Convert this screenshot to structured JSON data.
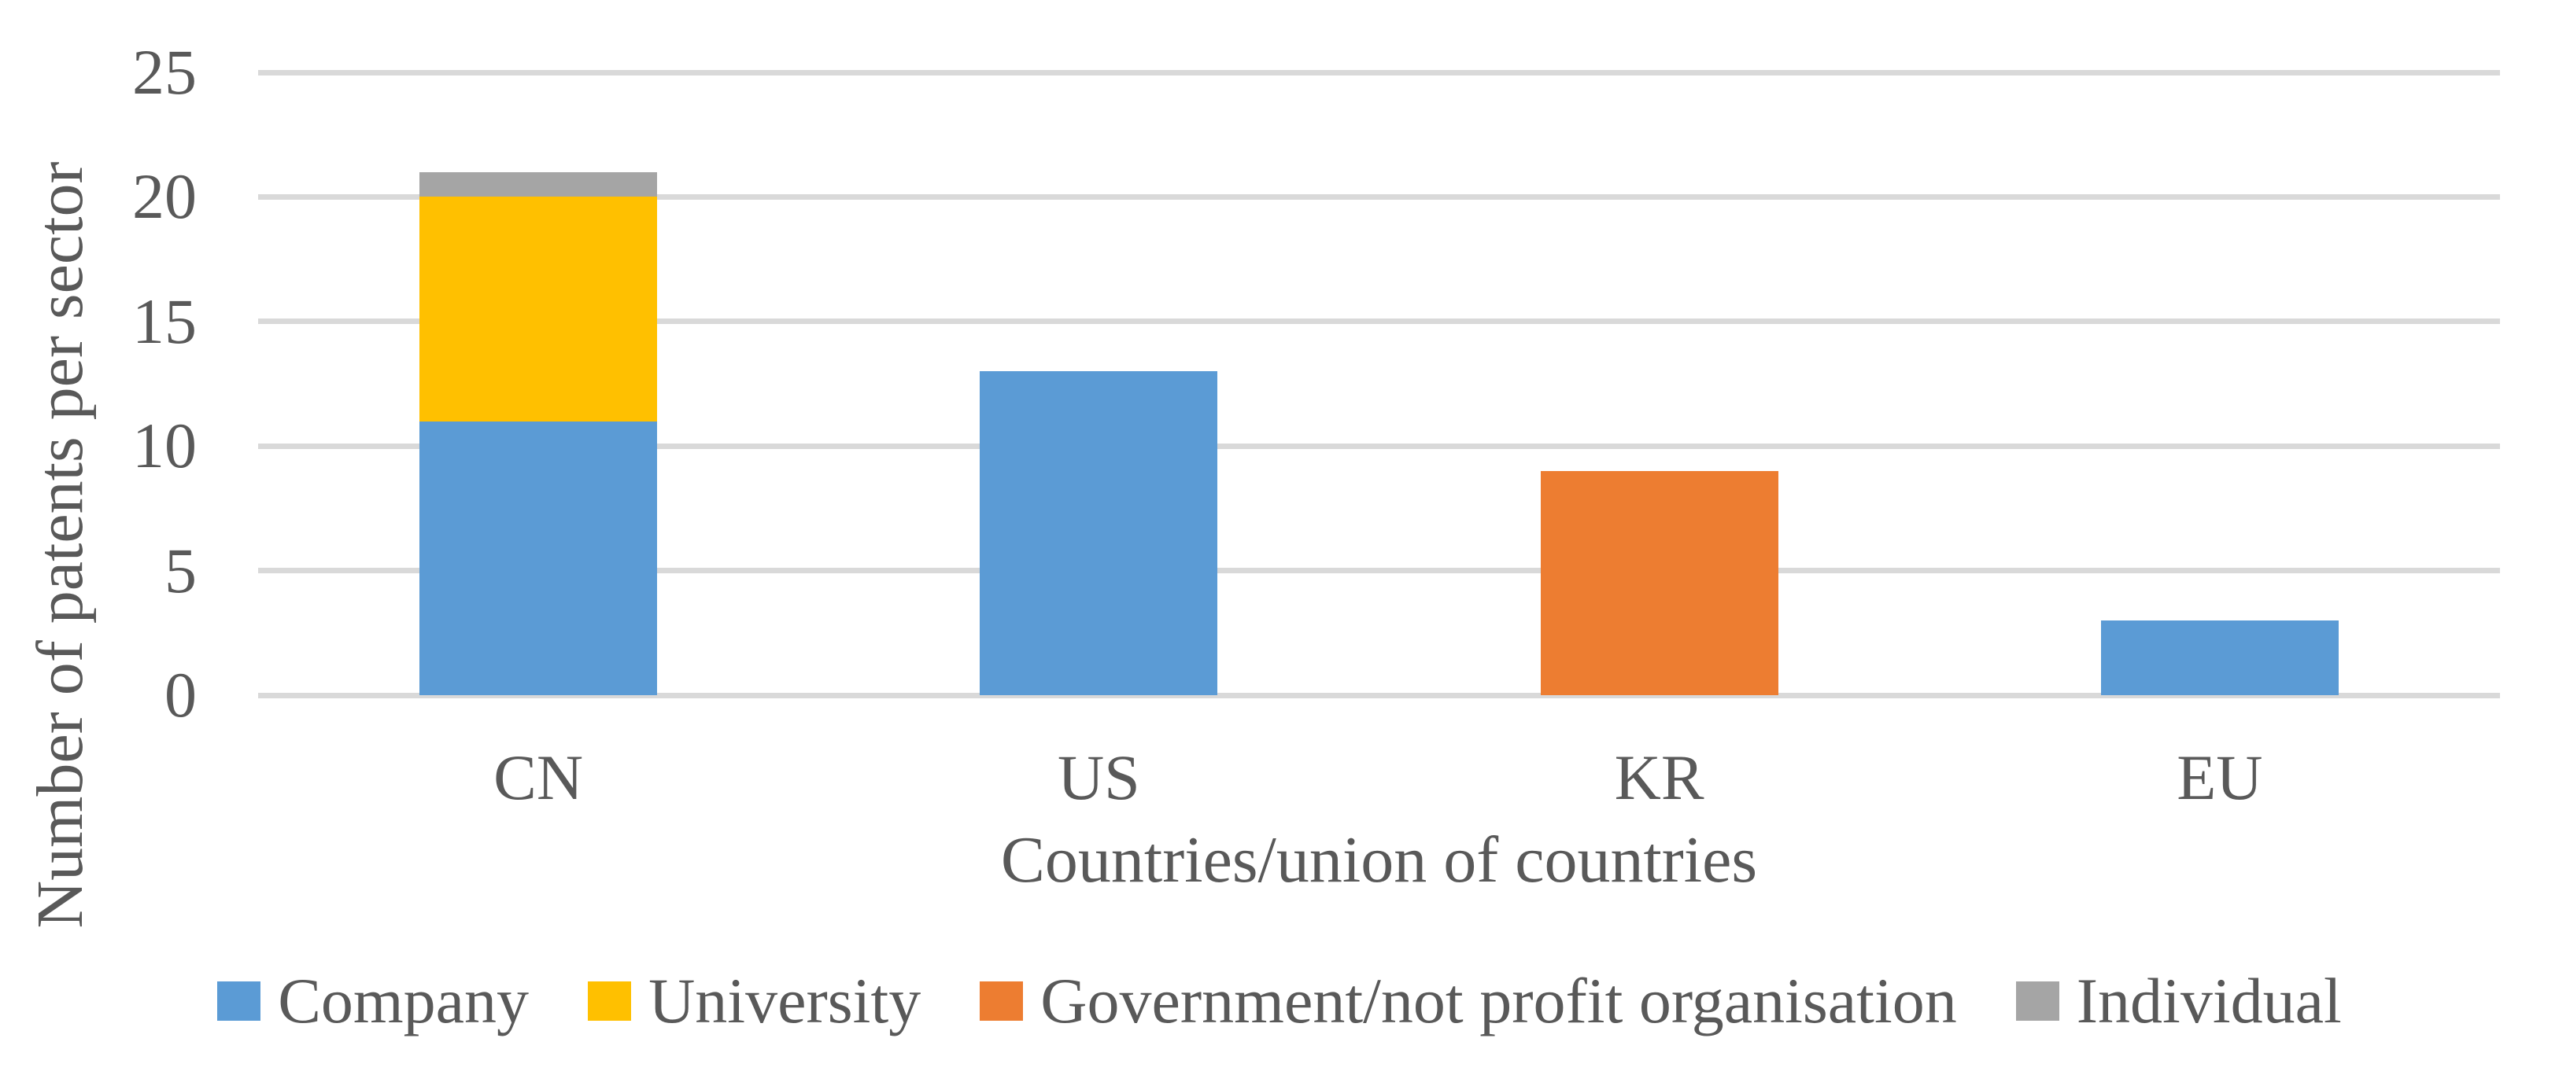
{
  "figure": {
    "background": "#FFFFFF",
    "text_color": "#595959"
  },
  "chart_data": {
    "type": "bar",
    "stacked": true,
    "title": "",
    "xlabel": "Countries/union of countries",
    "ylabel": "Number of patents per sector",
    "categories": [
      "CN",
      "US",
      "KR",
      "EU"
    ],
    "series": [
      {
        "name": "Company",
        "color": "#5B9BD5",
        "values": [
          11,
          13,
          0,
          3
        ]
      },
      {
        "name": "University",
        "color": "#FFC000",
        "values": [
          9,
          0,
          0,
          0
        ]
      },
      {
        "name": "Government/not profit organisation",
        "color": "#ED7D31",
        "values": [
          0,
          0,
          9,
          0
        ]
      },
      {
        "name": "Individual",
        "color": "#A5A5A5",
        "values": [
          1,
          0,
          0,
          0
        ]
      }
    ],
    "totals": [
      21,
      13,
      9,
      3
    ],
    "ylim": [
      0,
      25
    ],
    "yticks": [
      0,
      5,
      10,
      15,
      20,
      25
    ],
    "grid": "horizontal",
    "gridline_color": "#D9D9D9",
    "legend_position": "bottom"
  }
}
